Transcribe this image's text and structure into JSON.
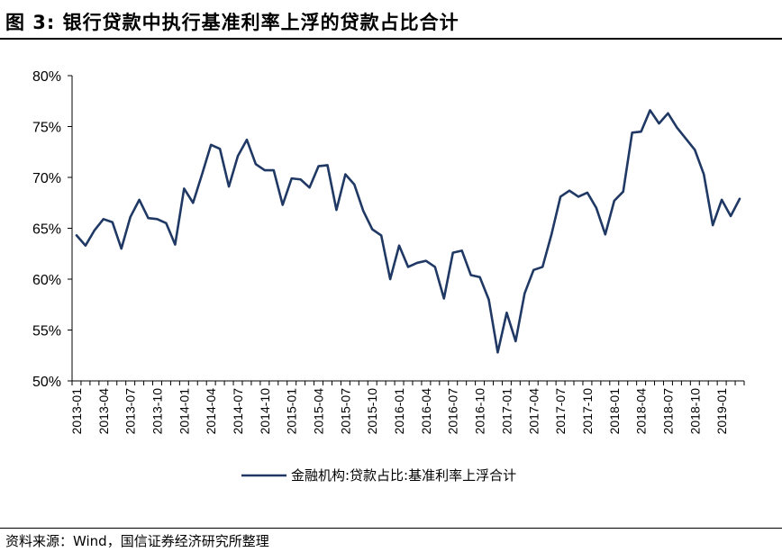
{
  "header": {
    "title": "图 3:  银行贷款中执行基准利率上浮的贷款占比合计"
  },
  "footer": {
    "source": "资料来源：Wind，国信证券经济研究所整理"
  },
  "colors": {
    "series_line": "#1f3864",
    "axis": "#000000"
  },
  "chart_data": {
    "type": "line",
    "title": "",
    "xlabel": "",
    "ylabel": "",
    "ylim": [
      50,
      80
    ],
    "y_ticks": [
      "50%",
      "55%",
      "60%",
      "65%",
      "70%",
      "75%",
      "80%"
    ],
    "x_tick_labels": [
      "2013-01",
      "2013-04",
      "2013-07",
      "2013-10",
      "2014-01",
      "2014-04",
      "2014-07",
      "2014-10",
      "2015-01",
      "2015-04",
      "2015-07",
      "2015-10",
      "2016-01",
      "2016-04",
      "2016-07",
      "2016-10",
      "2017-01",
      "2017-04",
      "2017-07",
      "2017-10",
      "2018-01",
      "2018-04",
      "2018-07",
      "2018-10",
      "2019-01"
    ],
    "legend_position": "bottom",
    "grid": false,
    "x": [
      "2013-01",
      "2013-02",
      "2013-03",
      "2013-04",
      "2013-05",
      "2013-06",
      "2013-07",
      "2013-08",
      "2013-09",
      "2013-10",
      "2013-11",
      "2013-12",
      "2014-01",
      "2014-02",
      "2014-03",
      "2014-04",
      "2014-05",
      "2014-06",
      "2014-07",
      "2014-08",
      "2014-09",
      "2014-10",
      "2014-11",
      "2014-12",
      "2015-01",
      "2015-02",
      "2015-03",
      "2015-04",
      "2015-05",
      "2015-06",
      "2015-07",
      "2015-08",
      "2015-09",
      "2015-10",
      "2015-11",
      "2015-12",
      "2016-01",
      "2016-02",
      "2016-03",
      "2016-04",
      "2016-05",
      "2016-06",
      "2016-07",
      "2016-08",
      "2016-09",
      "2016-10",
      "2016-11",
      "2016-12",
      "2017-01",
      "2017-02",
      "2017-03",
      "2017-04",
      "2017-05",
      "2017-06",
      "2017-07",
      "2017-08",
      "2017-09",
      "2017-10",
      "2017-11",
      "2017-12",
      "2018-01",
      "2018-02",
      "2018-03",
      "2018-04",
      "2018-05",
      "2018-06",
      "2018-07",
      "2018-08",
      "2018-09",
      "2018-10",
      "2018-11",
      "2018-12",
      "2019-01",
      "2019-02",
      "2019-03"
    ],
    "series": [
      {
        "name": "金融机构:贷款占比:基准利率上浮合计",
        "values": [
          64.3,
          63.3,
          64.8,
          65.9,
          65.6,
          63.0,
          66.1,
          67.8,
          66.0,
          65.9,
          65.5,
          63.4,
          68.9,
          67.5,
          70.3,
          73.2,
          72.8,
          69.1,
          72.1,
          73.7,
          71.3,
          70.7,
          70.7,
          67.3,
          69.9,
          69.8,
          69.0,
          71.1,
          71.2,
          66.8,
          70.3,
          69.3,
          66.7,
          64.9,
          64.3,
          60.0,
          63.3,
          61.2,
          61.6,
          61.8,
          61.2,
          58.1,
          62.6,
          62.8,
          60.4,
          60.2,
          58.0,
          52.8,
          56.7,
          53.9,
          58.6,
          60.9,
          61.2,
          64.4,
          68.1,
          68.7,
          68.1,
          68.5,
          67.0,
          64.4,
          67.7,
          68.6,
          74.4,
          74.5,
          76.6,
          75.3,
          76.3,
          74.9,
          73.8,
          72.7,
          70.3,
          65.3,
          67.8,
          66.2,
          67.9
        ]
      }
    ]
  }
}
